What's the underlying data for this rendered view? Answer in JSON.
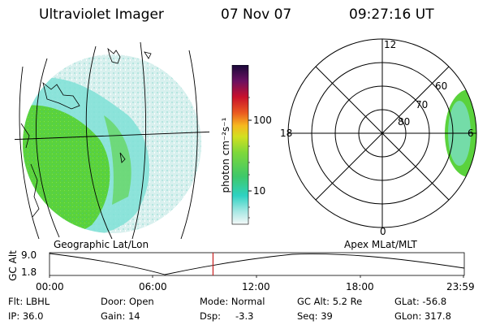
{
  "header": {
    "instrument": "Ultraviolet Imager",
    "date": "07 Nov 07",
    "time": "09:27:16 UT"
  },
  "colorbar": {
    "unit_label": "photon cm⁻²s⁻¹",
    "ticks": [
      "100",
      "10"
    ]
  },
  "polar_plot": {
    "mlt_labels": [
      "12",
      "18",
      "6",
      "0"
    ],
    "mlat_labels": [
      "60",
      "70",
      "80"
    ]
  },
  "panel_labels": {
    "left": "Geographic Lat/Lon",
    "right": "Apex MLat/MLT"
  },
  "timeline": {
    "axis_label": "GC Alt",
    "y_top": "9.0",
    "y_bottom": "1.8",
    "x_ticks": [
      "00:00",
      "06:00",
      "12:00",
      "18:00",
      "23:59"
    ],
    "current_time_fraction": 0.395
  },
  "status": {
    "filter": "Flt: LBHL",
    "ip": "IP: 36.0",
    "door": "Door: Open",
    "gain": "Gain: 14",
    "mode": "Mode: Normal",
    "dsp_label": "Dsp:",
    "dsp_value": "-3.3",
    "gc_alt": "GC Alt: 5.2 Re",
    "seq": "Seq: 39",
    "glat": "GLat: -56.8",
    "glon": "GLon: 317.8"
  },
  "colors": {
    "auroral_green": "#5ad23c",
    "auroral_cyan": "#7fe0d6",
    "auroral_pale": "#d8f0ee",
    "time_marker": "#c81e1e"
  }
}
